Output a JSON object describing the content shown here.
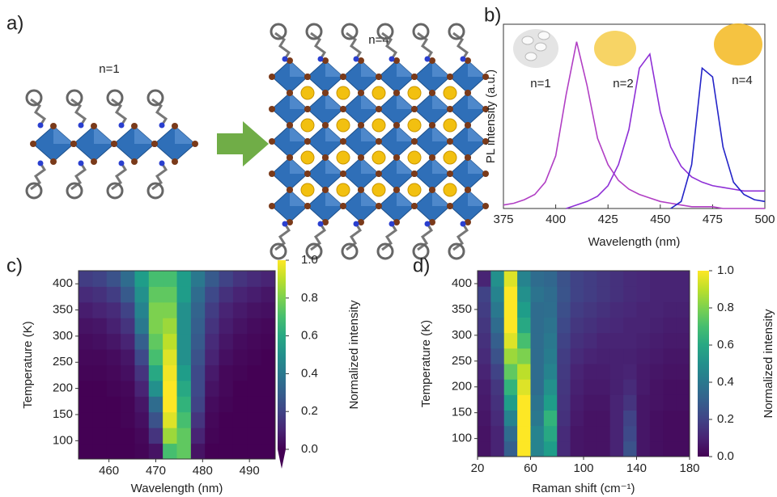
{
  "panel_a": {
    "label": "a)",
    "structures": [
      {
        "label": "n=1"
      },
      {
        "label": "n=4"
      }
    ]
  },
  "chart_data": [
    {
      "type": "line",
      "panel_label": "b)",
      "xlabel": "Wavelength (nm)",
      "ylabel": "PL intensity (a.u.)",
      "x": [
        375,
        380,
        385,
        390,
        395,
        400,
        405,
        410,
        415,
        420,
        425,
        430,
        435,
        440,
        445,
        450,
        455,
        460,
        465,
        470,
        475,
        480,
        485,
        490,
        495,
        500
      ],
      "xlim": [
        375,
        500
      ],
      "xticks": [
        375,
        400,
        425,
        450,
        475,
        500
      ],
      "ylim": [
        0,
        1.05
      ],
      "series": [
        {
          "name": "n=1",
          "color": "#b13fc4",
          "values": [
            0.02,
            0.03,
            0.05,
            0.08,
            0.15,
            0.3,
            0.65,
            0.95,
            0.7,
            0.4,
            0.25,
            0.16,
            0.11,
            0.08,
            0.06,
            0.04,
            0.03,
            0.02,
            0.01,
            0.01,
            0.01,
            0.0,
            0.0,
            0.0,
            0.0,
            0.0
          ]
        },
        {
          "name": "n=2",
          "color": "#8e2fd6",
          "values": [
            null,
            null,
            null,
            null,
            null,
            null,
            0.0,
            0.02,
            0.04,
            0.07,
            0.13,
            0.25,
            0.45,
            0.8,
            0.88,
            0.55,
            0.35,
            0.24,
            0.18,
            0.15,
            0.13,
            0.12,
            0.11,
            0.1,
            0.1,
            0.1
          ]
        },
        {
          "name": "n=4",
          "color": "#2424c8",
          "values": [
            null,
            null,
            null,
            null,
            null,
            null,
            null,
            null,
            null,
            null,
            null,
            null,
            null,
            null,
            null,
            null,
            0.0,
            0.04,
            0.25,
            0.8,
            0.75,
            0.35,
            0.15,
            0.08,
            0.05,
            0.04
          ]
        }
      ]
    },
    {
      "type": "heatmap",
      "panel_label": "c)",
      "xlabel": "Wavelength (nm)",
      "ylabel": "Temperature (K)",
      "colormap": "viridis",
      "x": [
        455,
        458,
        461,
        464,
        467,
        470,
        473,
        476,
        479,
        482,
        485,
        488,
        491,
        494
      ],
      "y": [
        80,
        110,
        140,
        170,
        200,
        230,
        260,
        290,
        320,
        350,
        380,
        410
      ],
      "xlim": [
        453.5,
        495.5
      ],
      "xticks": [
        460,
        470,
        480,
        490
      ],
      "ylim": [
        65,
        425
      ],
      "yticks": [
        100,
        150,
        200,
        250,
        300,
        350,
        400
      ],
      "values": [
        [
          0,
          0,
          0,
          0,
          0.01,
          0.05,
          0.7,
          0.75,
          0.05,
          0,
          0,
          0,
          0,
          0
        ],
        [
          0,
          0,
          0,
          0,
          0.02,
          0.15,
          0.85,
          0.75,
          0.1,
          0.01,
          0,
          0,
          0,
          0
        ],
        [
          0,
          0,
          0,
          0.01,
          0.04,
          0.25,
          0.95,
          0.7,
          0.15,
          0.02,
          0,
          0,
          0,
          0
        ],
        [
          0,
          0,
          0,
          0.01,
          0.06,
          0.35,
          1.0,
          0.65,
          0.2,
          0.03,
          0.01,
          0,
          0,
          0
        ],
        [
          0,
          0,
          0.01,
          0.02,
          0.1,
          0.5,
          1.0,
          0.6,
          0.22,
          0.05,
          0.02,
          0,
          0,
          0
        ],
        [
          0.01,
          0.01,
          0.02,
          0.04,
          0.15,
          0.6,
          0.98,
          0.55,
          0.22,
          0.07,
          0.02,
          0.01,
          0,
          0
        ],
        [
          0.02,
          0.02,
          0.03,
          0.06,
          0.22,
          0.7,
          0.95,
          0.5,
          0.25,
          0.1,
          0.04,
          0.02,
          0.01,
          0
        ],
        [
          0.03,
          0.04,
          0.06,
          0.1,
          0.3,
          0.75,
          0.9,
          0.5,
          0.28,
          0.12,
          0.06,
          0.03,
          0.02,
          0.01
        ],
        [
          0.05,
          0.06,
          0.09,
          0.15,
          0.4,
          0.8,
          0.85,
          0.5,
          0.3,
          0.15,
          0.08,
          0.05,
          0.03,
          0.02
        ],
        [
          0.08,
          0.1,
          0.12,
          0.2,
          0.45,
          0.8,
          0.8,
          0.5,
          0.32,
          0.18,
          0.1,
          0.07,
          0.05,
          0.04
        ],
        [
          0.12,
          0.14,
          0.18,
          0.28,
          0.5,
          0.75,
          0.75,
          0.55,
          0.35,
          0.22,
          0.14,
          0.1,
          0.08,
          0.06
        ],
        [
          0.18,
          0.2,
          0.25,
          0.35,
          0.55,
          0.7,
          0.7,
          0.55,
          0.4,
          0.28,
          0.2,
          0.15,
          0.12,
          0.1
        ]
      ],
      "colorbar": {
        "label": "Normalized intensity",
        "lim": [
          0,
          1
        ],
        "ticks": [
          {
            "value": 0,
            "label": "0.0"
          },
          0.2,
          0.4,
          0.6,
          0.8,
          {
            "value": 1,
            "label": "1.0"
          }
        ]
      }
    },
    {
      "type": "heatmap",
      "panel_label": "d)",
      "xlabel": "Raman shift (cm⁻¹)",
      "ylabel": "Temperature (K)",
      "colormap": "viridis",
      "x": [
        25,
        35,
        45,
        55,
        65,
        75,
        85,
        95,
        105,
        115,
        125,
        135,
        145,
        155,
        165,
        175
      ],
      "y": [
        80,
        110,
        140,
        170,
        200,
        230,
        260,
        290,
        320,
        350,
        380,
        410
      ],
      "xlim": [
        20,
        180
      ],
      "xticks": [
        20,
        60,
        100,
        140,
        180
      ],
      "ylim": [
        65,
        425
      ],
      "yticks": [
        100,
        150,
        200,
        250,
        300,
        350,
        400
      ],
      "values": [
        [
          0.05,
          0.1,
          0.3,
          1.0,
          0.45,
          0.55,
          0.12,
          0.06,
          0.05,
          0.05,
          0.1,
          0.25,
          0.06,
          0.04,
          0.03,
          0.03
        ],
        [
          0.05,
          0.1,
          0.35,
          1.0,
          0.45,
          0.6,
          0.12,
          0.06,
          0.05,
          0.05,
          0.1,
          0.22,
          0.06,
          0.04,
          0.03,
          0.03
        ],
        [
          0.06,
          0.12,
          0.45,
          1.0,
          0.4,
          0.65,
          0.14,
          0.07,
          0.05,
          0.05,
          0.1,
          0.2,
          0.06,
          0.04,
          0.03,
          0.03
        ],
        [
          0.07,
          0.14,
          0.55,
          1.0,
          0.38,
          0.55,
          0.15,
          0.08,
          0.06,
          0.06,
          0.1,
          0.15,
          0.06,
          0.05,
          0.04,
          0.04
        ],
        [
          0.08,
          0.16,
          0.65,
          0.95,
          0.35,
          0.5,
          0.16,
          0.09,
          0.07,
          0.07,
          0.09,
          0.12,
          0.07,
          0.05,
          0.04,
          0.04
        ],
        [
          0.1,
          0.2,
          0.75,
          0.9,
          0.35,
          0.45,
          0.17,
          0.1,
          0.08,
          0.08,
          0.09,
          0.1,
          0.07,
          0.06,
          0.05,
          0.05
        ],
        [
          0.12,
          0.25,
          0.85,
          0.8,
          0.35,
          0.42,
          0.18,
          0.12,
          0.1,
          0.09,
          0.09,
          0.09,
          0.08,
          0.07,
          0.06,
          0.06
        ],
        [
          0.14,
          0.3,
          0.95,
          0.7,
          0.35,
          0.4,
          0.2,
          0.14,
          0.12,
          0.1,
          0.1,
          0.1,
          0.09,
          0.08,
          0.07,
          0.07
        ],
        [
          0.16,
          0.35,
          1.0,
          0.6,
          0.35,
          0.38,
          0.22,
          0.16,
          0.14,
          0.12,
          0.11,
          0.1,
          0.1,
          0.09,
          0.08,
          0.08
        ],
        [
          0.18,
          0.4,
          1.0,
          0.55,
          0.35,
          0.36,
          0.24,
          0.18,
          0.16,
          0.14,
          0.12,
          0.11,
          0.1,
          0.1,
          0.09,
          0.09
        ],
        [
          0.2,
          0.45,
          1.0,
          0.5,
          0.38,
          0.35,
          0.26,
          0.2,
          0.18,
          0.16,
          0.14,
          0.12,
          0.11,
          0.1,
          0.1,
          0.1
        ],
        [
          0.1,
          0.5,
          0.95,
          0.45,
          0.35,
          0.33,
          0.25,
          0.2,
          0.18,
          0.16,
          0.14,
          0.12,
          0.11,
          0.1,
          0.1,
          0.1
        ]
      ],
      "colorbar": {
        "label": "Normalized intensity",
        "lim": [
          0,
          1
        ],
        "ticks": [
          {
            "value": 0,
            "label": "0.0"
          },
          0.2,
          0.4,
          0.6,
          0.8,
          {
            "value": 1,
            "label": "1.0"
          }
        ]
      }
    }
  ]
}
